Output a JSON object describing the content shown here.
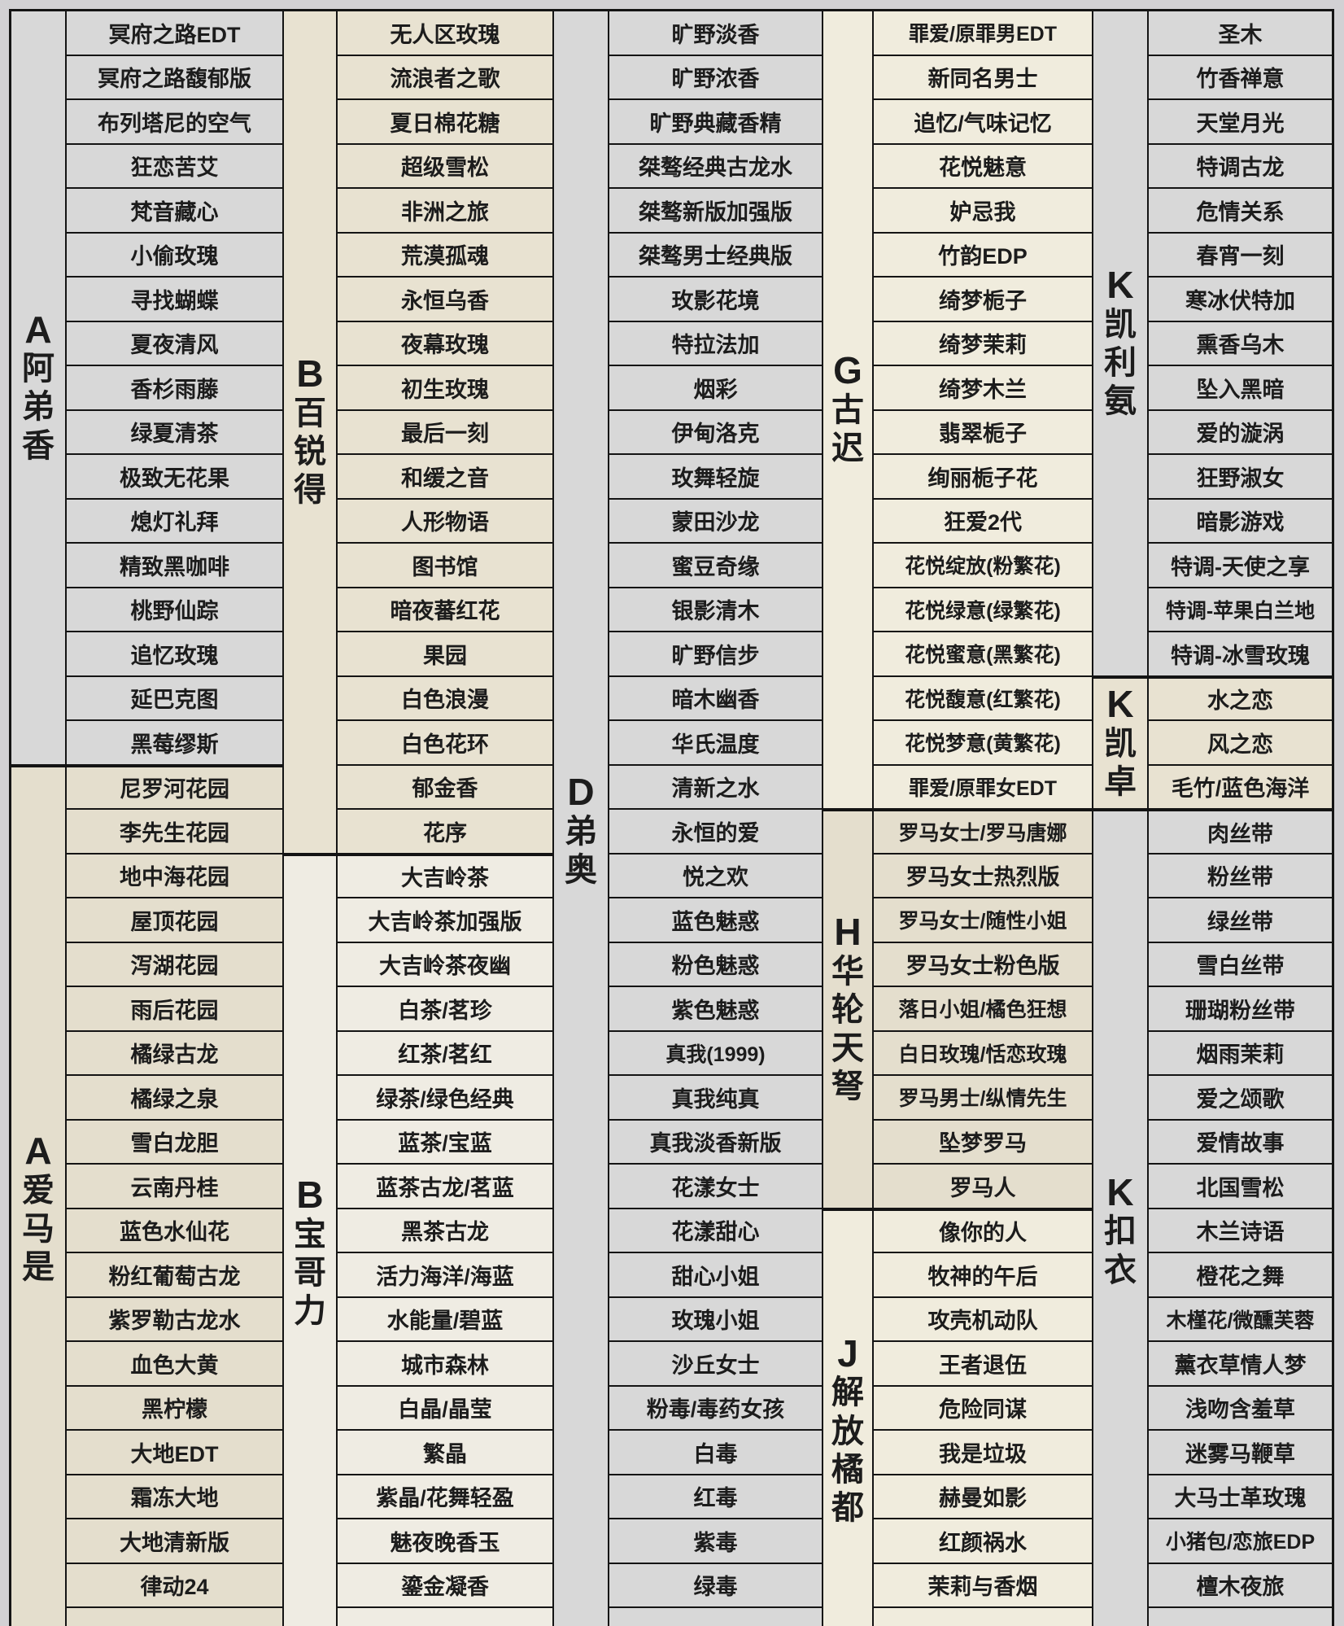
{
  "styles": {
    "page_bg": "#d2d1d4",
    "border_color": "#141414",
    "text_color": "#1c1c1c",
    "colors": {
      "gray": "#d8d8d8",
      "beige": "#e4decd",
      "warm": "#e8e2d1",
      "cream": "#f0ecdd",
      "light": "#efece3"
    }
  },
  "table": {
    "rows_total": 37,
    "column_pairs": [
      {
        "id": "A",
        "sections": [
          {
            "letter": "A",
            "brand": "阿弟香",
            "start": 1,
            "end": 17,
            "color": "gray",
            "names": [
              "冥府之路EDT",
              "冥府之路馥郁版",
              "布列塔尼的空气",
              "狂恋苦艾",
              "梵音藏心",
              "小偷玫瑰",
              "寻找蝴蝶",
              "夏夜清风",
              "香杉雨藤",
              "绿夏清茶",
              "极致无花果",
              "熄灯礼拜",
              "精致黑咖啡",
              "桃野仙踪",
              "追忆玫瑰",
              "延巴克图",
              "黑莓缪斯"
            ]
          },
          {
            "letter": "A",
            "brand": "爱马是",
            "start": 18,
            "end": 37,
            "color": "beige",
            "names": [
              "尼罗河花园",
              "李先生花园",
              "地中海花园",
              "屋顶花园",
              "泻湖花园",
              "雨后花园",
              "橘绿古龙",
              "橘绿之泉",
              "雪白龙胆",
              "云南丹桂",
              "蓝色水仙花",
              "粉红葡萄古龙",
              "紫罗勒古龙水",
              "血色大黄",
              "黑柠檬",
              "大地EDT",
              "霜冻大地",
              "大地清新版",
              "律动24"
            ]
          }
        ]
      },
      {
        "id": "B",
        "sections": [
          {
            "letter": "B",
            "brand": "百锐得",
            "start": 1,
            "end": 19,
            "color": "warm",
            "names": [
              "无人区玫瑰",
              "流浪者之歌",
              "夏日棉花糖",
              "超级雪松",
              "非洲之旅",
              "荒漠孤魂",
              "永恒乌香",
              "夜幕玫瑰",
              "初生玫瑰",
              "最后一刻",
              "和缓之音",
              "人形物语",
              "图书馆",
              "暗夜蕃红花",
              "果园",
              "白色浪漫",
              "白色花环",
              "郁金香",
              "花序"
            ]
          },
          {
            "letter": "B",
            "brand": "宝哥力",
            "start": 20,
            "end": 37,
            "color": "light",
            "names": [
              "大吉岭茶",
              "大吉岭茶加强版",
              "大吉岭茶夜幽",
              "白茶/茗珍",
              "红茶/茗红",
              "绿茶/绿色经典",
              "蓝茶/宝蓝",
              "蓝茶古龙/茗蓝",
              "黑茶古龙",
              "活力海洋/海蓝",
              "水能量/碧蓝",
              "城市森林",
              "白晶/晶莹",
              "繁晶",
              "紫晶/花舞轻盈",
              "魅夜晚香玉",
              "鎏金凝香"
            ]
          }
        ]
      },
      {
        "id": "D",
        "sections": [
          {
            "letter": "D",
            "brand": "弟奥",
            "start": 1,
            "end": 37,
            "color": "gray",
            "names": [
              "旷野淡香",
              "旷野浓香",
              "旷野典藏香精",
              "桀骜经典古龙水",
              "桀骜新版加强版",
              "桀骜男士经典版",
              "玫影花境",
              "特拉法加",
              "烟彩",
              "伊甸洛克",
              "玫舞轻旋",
              "蒙田沙龙",
              "蜜豆奇缘",
              "银影清木",
              "旷野信步",
              "暗木幽香",
              "华氏温度",
              "清新之水",
              "永恒的爱",
              "悦之欢",
              "蓝色魅惑",
              "粉色魅惑",
              "紫色魅惑",
              "真我(1999)",
              "真我纯真",
              "真我淡香新版",
              "花漾女士",
              "花漾甜心",
              "甜心小姐",
              "玫瑰小姐",
              "沙丘女士",
              "粉毒/毒药女孩",
              "白毒",
              "红毒",
              "紫毒",
              "绿毒"
            ]
          }
        ]
      },
      {
        "id": "GHJ",
        "sections": [
          {
            "letter": "G",
            "brand": "古迟",
            "start": 1,
            "end": 18,
            "color": "cream",
            "names": [
              "罪爱/原罪男EDT",
              "新同名男士",
              "追忆/气味记忆",
              "花悦魅意",
              "妒忌我",
              "竹韵EDP",
              "绮梦栀子",
              "绮梦茉莉",
              "绮梦木兰",
              "翡翠栀子",
              "绚丽栀子花",
              "狂爱2代",
              "花悦绽放(粉繁花)",
              "花悦绿意(绿繁花)",
              "花悦蜜意(黑繁花)",
              "花悦馥意(红繁花)",
              "花悦梦意(黄繁花)",
              "罪爱/原罪女EDT"
            ]
          },
          {
            "letter": "H",
            "brand": "华轮天弩",
            "start": 19,
            "end": 27,
            "color": "beige",
            "names": [
              "罗马女士/罗马唐娜",
              "罗马女士热烈版",
              "罗马女士/随性小姐",
              "罗马女士粉色版",
              "落日小姐/橘色狂想",
              "白日玫瑰/恬恋玫瑰",
              "罗马男士/纵情先生",
              "坠梦罗马",
              "罗马人"
            ]
          },
          {
            "letter": "J",
            "brand": "解放橘都",
            "start": 28,
            "end": 37,
            "color": "cream",
            "names": [
              "像你的人",
              "牧神的午后",
              "攻壳机动队",
              "王者退伍",
              "危险同谋",
              "我是垃圾",
              "赫曼如影",
              "红颜祸水",
              "茉莉与香烟"
            ]
          }
        ]
      },
      {
        "id": "K",
        "sections": [
          {
            "letter": "K",
            "brand": "凯利氨",
            "start": 1,
            "end": 15,
            "color": "gray",
            "names": [
              "圣木",
              "竹香禅意",
              "天堂月光",
              "特调古龙",
              "危情关系",
              "春宵一刻",
              "寒冰伏特加",
              "熏香乌木",
              "坠入黑暗",
              "爱的漩涡",
              "狂野淑女",
              "暗影游戏",
              "特调-天使之享",
              "特调-苹果白兰地",
              "特调-冰雪玫瑰"
            ]
          },
          {
            "letter": "K",
            "brand": "凯卓",
            "start": 16,
            "end": 18,
            "color": "warm",
            "names": [
              "水之恋",
              "风之恋",
              "毛竹/蓝色海洋"
            ]
          },
          {
            "letter": "K",
            "brand": "扣衣",
            "start": 19,
            "end": 37,
            "color": "gray",
            "names": [
              "肉丝带",
              "粉丝带",
              "绿丝带",
              "雪白丝带",
              "珊瑚粉丝带",
              "烟雨茉莉",
              "爱之颂歌",
              "爱情故事",
              "北国雪松",
              "木兰诗语",
              "橙花之舞",
              "木槿花/微醺芙蓉",
              "薰衣草情人梦",
              "浅吻含羞草",
              "迷雾马鞭草",
              "大马士革玫瑰",
              "小猪包/恋旅EDP",
              "檀木夜旅"
            ]
          }
        ]
      }
    ]
  }
}
